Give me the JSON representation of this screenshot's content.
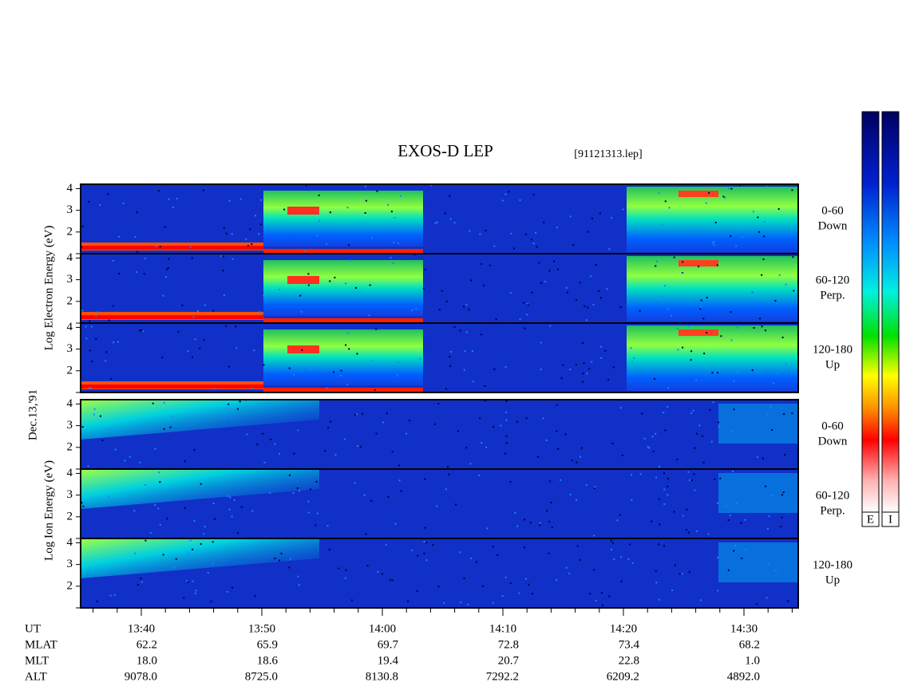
{
  "title": "EXOS-D LEP",
  "file": "[91121313.lep]",
  "date": "Dec.13,'91",
  "electron_axis_label": "Log Electron Energy (eV)",
  "ion_axis_label": "Log Ion Energy (eV)",
  "ylim": [
    1,
    4.2
  ],
  "yticks": [
    2,
    3,
    4
  ],
  "panels": [
    {
      "species": "electron",
      "label": [
        "0-60",
        "Down"
      ]
    },
    {
      "species": "electron",
      "label": [
        "60-120",
        "Perp."
      ]
    },
    {
      "species": "electron",
      "label": [
        "120-180",
        "Up"
      ]
    },
    {
      "species": "ion",
      "label": [
        "0-60",
        "Down"
      ]
    },
    {
      "species": "ion",
      "label": [
        "60-120",
        "Perp."
      ]
    },
    {
      "species": "ion",
      "label": [
        "120-180",
        "Up"
      ]
    }
  ],
  "ephemeris": [
    {
      "label": "UT",
      "values": [
        "13:40",
        "13:50",
        "14:00",
        "14:10",
        "14:20",
        "14:30"
      ]
    },
    {
      "label": "MLAT",
      "values": [
        "62.2",
        "65.9",
        "69.7",
        "72.8",
        "73.4",
        "68.2"
      ]
    },
    {
      "label": "MLT",
      "values": [
        "18.0",
        "18.6",
        "19.4",
        "20.7",
        "22.8",
        "1.0"
      ]
    },
    {
      "label": "ALT",
      "values": [
        "9078.0",
        "8725.0",
        "8130.8",
        "7292.2",
        "6209.2",
        "4892.0"
      ]
    }
  ],
  "colorbars": [
    "E",
    "I"
  ]
}
